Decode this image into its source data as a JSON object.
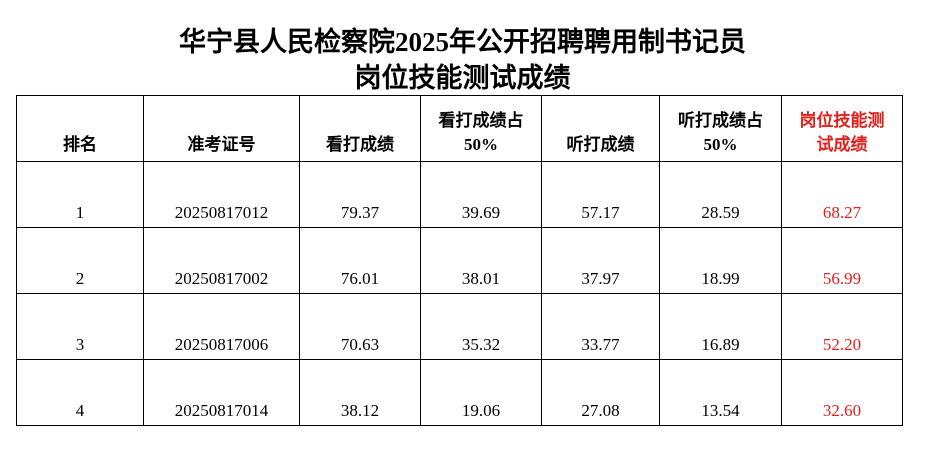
{
  "header": {
    "title_line1": "华宁县人民检察院2025年公开招聘聘用制书记员",
    "title_line2": "岗位技能测试成绩"
  },
  "table": {
    "columns": [
      "排名",
      "准考证号",
      "看打成绩",
      "看打成绩占50%",
      "听打成绩",
      "听打成绩占50%",
      "岗位技能测试成绩"
    ],
    "rows": [
      [
        "1",
        "20250817012",
        "79.37",
        "39.69",
        "57.17",
        "28.59",
        "68.27"
      ],
      [
        "2",
        "20250817002",
        "76.01",
        "38.01",
        "37.97",
        "18.99",
        "56.99"
      ],
      [
        "3",
        "20250817006",
        "70.63",
        "35.32",
        "33.77",
        "16.89",
        "52.20"
      ],
      [
        "4",
        "20250817014",
        "38.12",
        "19.06",
        "27.08",
        "13.54",
        "32.60"
      ]
    ]
  }
}
